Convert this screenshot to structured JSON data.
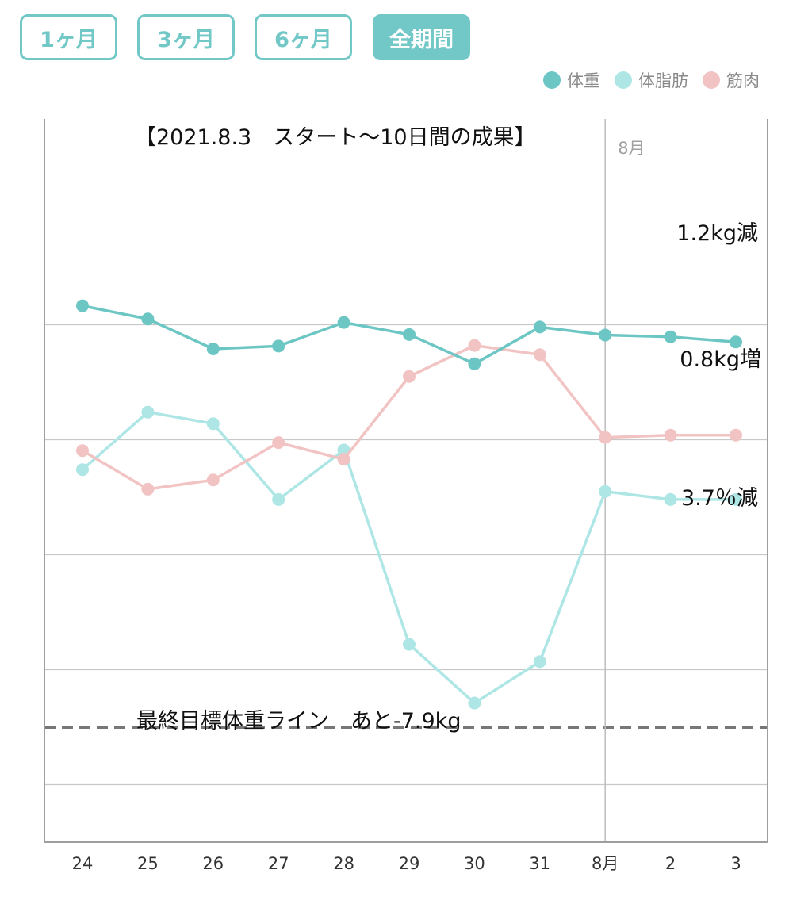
{
  "tabs": [
    {
      "label": "1ヶ月",
      "active": false
    },
    {
      "label": "3ヶ月",
      "active": false
    },
    {
      "label": "6ヶ月",
      "active": false
    },
    {
      "label": "全期間",
      "active": true
    }
  ],
  "colors": {
    "accent": "#72c7c7",
    "weight": "#6cc6c4",
    "body_fat": "#aee6e6",
    "muscle": "#f2c3c3",
    "grid": "#c8c8c8",
    "target_line": "#777777"
  },
  "chart_data": {
    "type": "line",
    "categories": [
      "24",
      "25",
      "26",
      "27",
      "28",
      "29",
      "30",
      "31",
      "8月",
      "2",
      "3"
    ],
    "month_marker": {
      "category": "8月",
      "label": "8月"
    },
    "series": [
      {
        "name": "体重",
        "key": "weight",
        "values": [
          8.33,
          8.1,
          7.58,
          7.63,
          8.04,
          7.83,
          7.32,
          7.96,
          7.82,
          7.79,
          7.7
        ]
      },
      {
        "name": "体脂肪",
        "key": "body_fat",
        "values": [
          5.48,
          6.48,
          6.28,
          4.96,
          5.82,
          2.44,
          1.42,
          2.14,
          5.1,
          4.96,
          4.96
        ]
      },
      {
        "name": "筋肉",
        "key": "muscle",
        "values": [
          5.81,
          5.14,
          5.3,
          5.95,
          5.66,
          7.1,
          7.64,
          7.48,
          6.04,
          6.08,
          6.08
        ]
      }
    ],
    "ylim": [
      -1,
      10
    ],
    "yticks": [
      0,
      2,
      4,
      6,
      8
    ],
    "grid": true,
    "legend": "top-right",
    "target_line": {
      "value": 1.0,
      "label": "最終目標体重ライン　あと-7.9kg"
    },
    "annotations": {
      "title": "【2021.8.3　スタート～10日間の成果】",
      "weight_change": "1.2kg減",
      "muscle_change": "0.8kg増",
      "fat_change": "3.7％減"
    }
  }
}
